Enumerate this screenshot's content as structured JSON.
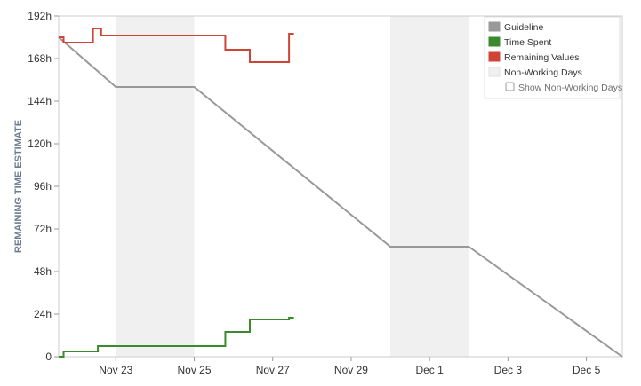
{
  "chart_data": {
    "type": "line",
    "ylabel": "REMAINING TIME ESTIMATE",
    "y_unit": "h",
    "ylim": [
      0,
      192
    ],
    "y_ticks": [
      0,
      24,
      48,
      72,
      96,
      120,
      144,
      168,
      192
    ],
    "y_tick_labels": [
      "0",
      "24h",
      "48h",
      "72h",
      "96h",
      "120h",
      "144h",
      "168h",
      "192h"
    ],
    "xlim": [
      "2023-11-21T13:00",
      "2023-12-05T22:00"
    ],
    "x_ticks": [
      {
        "label": "Nov 23",
        "date": "2023-11-23"
      },
      {
        "label": "Nov 25",
        "date": "2023-11-25"
      },
      {
        "label": "Nov 27",
        "date": "2023-11-27"
      },
      {
        "label": "Nov 29",
        "date": "2023-11-29"
      },
      {
        "label": "Dec 1",
        "date": "2023-12-01"
      },
      {
        "label": "Dec 3",
        "date": "2023-12-03"
      },
      {
        "label": "Dec 5",
        "date": "2023-12-05"
      }
    ],
    "non_working_days": [
      {
        "start": "2023-11-23T00:00",
        "end": "2023-11-25T00:00"
      },
      {
        "start": "2023-11-30T00:00",
        "end": "2023-12-02T00:00"
      }
    ],
    "grid": false,
    "legend_position": "top-right",
    "legend": [
      {
        "name": "Guideline",
        "color": "#999999",
        "type": "swatch"
      },
      {
        "name": "Time Spent",
        "color": "#3b8a2e",
        "type": "swatch"
      },
      {
        "name": "Remaining Values",
        "color": "#d04437",
        "type": "swatch"
      },
      {
        "name": "Non-Working Days",
        "color": "#f0f0f0",
        "type": "swatch"
      },
      {
        "name": "Show Non-Working Days",
        "type": "checkbox",
        "checked": false
      }
    ],
    "series": [
      {
        "name": "Guideline",
        "color": "#999999",
        "step": false,
        "points": [
          {
            "x": "2023-11-21T13:00",
            "y": 180
          },
          {
            "x": "2023-11-23T00:00",
            "y": 152
          },
          {
            "x": "2023-11-25T00:00",
            "y": 152
          },
          {
            "x": "2023-11-30T00:00",
            "y": 62
          },
          {
            "x": "2023-12-02T00:00",
            "y": 62
          },
          {
            "x": "2023-12-05T22:00",
            "y": 0
          }
        ]
      },
      {
        "name": "Remaining Values",
        "color": "#d04437",
        "step": true,
        "points": [
          {
            "x": "2023-11-21T13:00",
            "y": 180
          },
          {
            "x": "2023-11-21T16:00",
            "y": 177
          },
          {
            "x": "2023-11-22T10:00",
            "y": 185
          },
          {
            "x": "2023-11-22T15:00",
            "y": 181
          },
          {
            "x": "2023-11-25T19:00",
            "y": 173
          },
          {
            "x": "2023-11-26T10:00",
            "y": 166
          },
          {
            "x": "2023-11-27T10:00",
            "y": 182
          },
          {
            "x": "2023-11-27T13:00",
            "y": 182
          }
        ]
      },
      {
        "name": "Time Spent",
        "color": "#3b8a2e",
        "step": true,
        "points": [
          {
            "x": "2023-11-21T13:00",
            "y": 0
          },
          {
            "x": "2023-11-21T16:00",
            "y": 3
          },
          {
            "x": "2023-11-22T13:00",
            "y": 6
          },
          {
            "x": "2023-11-25T19:00",
            "y": 14
          },
          {
            "x": "2023-11-26T10:00",
            "y": 21
          },
          {
            "x": "2023-11-27T10:00",
            "y": 22
          },
          {
            "x": "2023-11-27T13:00",
            "y": 22
          }
        ]
      }
    ]
  }
}
